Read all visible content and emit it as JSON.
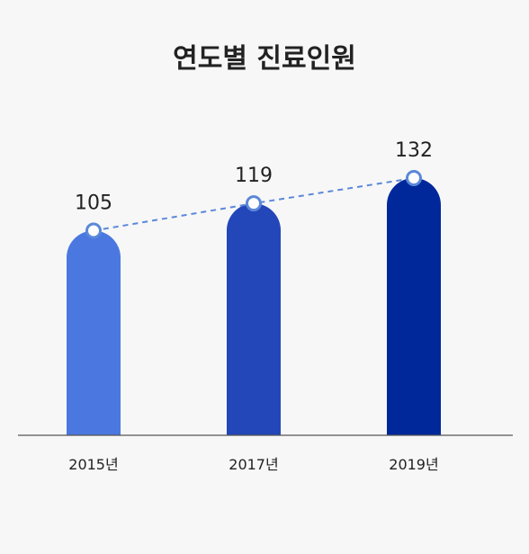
{
  "title": "연도별 진료인원",
  "colors": {
    "background": "#f7f7f7",
    "bars": [
      "#4a78e0",
      "#2347b8",
      "#00289a"
    ],
    "trend_line": "#5b88d8",
    "marker_stroke": "#5b88d8",
    "marker_fill": "#ffffff",
    "baseline": "#555555",
    "text": "#222222"
  },
  "chart_data": {
    "type": "bar",
    "title": "연도별 진료인원",
    "categories": [
      "2015년",
      "2017년",
      "2019년"
    ],
    "values": [
      105,
      119,
      132
    ],
    "data_labels": [
      "105",
      "119",
      "132"
    ],
    "overlay": "dashed trend line connecting bar tops with circular markers",
    "xlabel": "",
    "ylabel": "",
    "ylim": [
      0,
      140
    ],
    "grid": false,
    "legend": "none"
  }
}
